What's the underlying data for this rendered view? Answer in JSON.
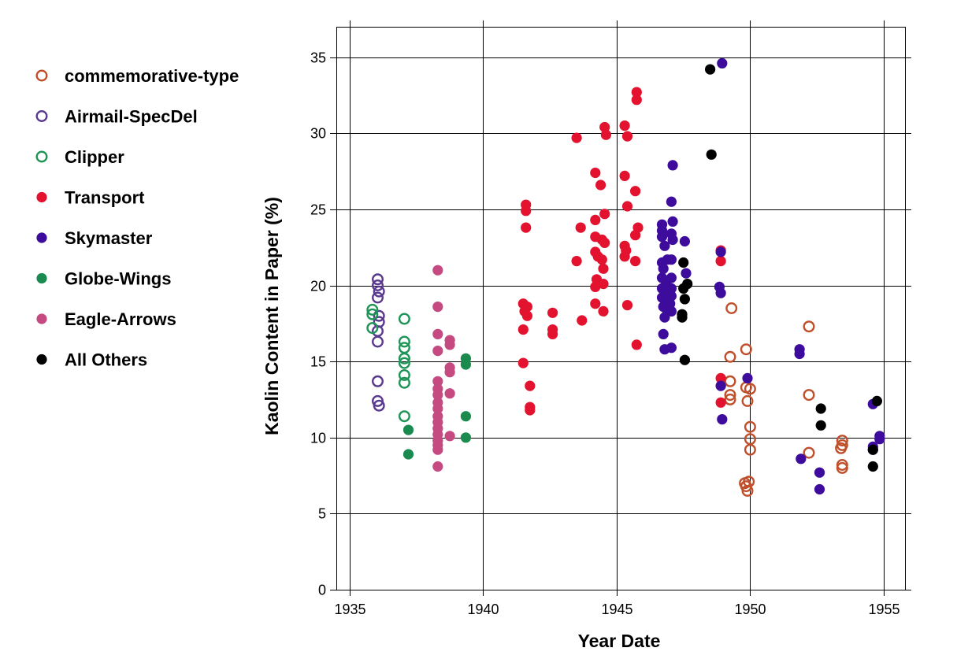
{
  "chart_data": {
    "type": "scatter",
    "title": "",
    "xlabel": "Year Date",
    "ylabel": "Kaolin Content in Paper (%)",
    "xlim": [
      1934.5,
      1955.8
    ],
    "ylim": [
      0,
      37
    ],
    "xticks": [
      1935,
      1940,
      1945,
      1950,
      1955
    ],
    "yticks": [
      0,
      5,
      10,
      15,
      20,
      25,
      30,
      35
    ],
    "grid": true,
    "legend_position": "left",
    "series": [
      {
        "name": "commemorative-type",
        "color": "#c0502c",
        "marker": "open-circle",
        "points": [
          [
            1949.3,
            18.5
          ],
          [
            1949.25,
            15.3
          ],
          [
            1949.85,
            15.8
          ],
          [
            1949.25,
            13.7
          ],
          [
            1949.25,
            12.8
          ],
          [
            1949.25,
            12.5
          ],
          [
            1949.85,
            13.3
          ],
          [
            1950.0,
            13.2
          ],
          [
            1949.9,
            12.4
          ],
          [
            1950.0,
            10.7
          ],
          [
            1950.0,
            9.9
          ],
          [
            1950.0,
            9.2
          ],
          [
            1949.8,
            7.0
          ],
          [
            1949.95,
            7.1
          ],
          [
            1949.85,
            6.8
          ],
          [
            1949.9,
            6.5
          ],
          [
            1952.2,
            17.3
          ],
          [
            1952.2,
            12.8
          ],
          [
            1952.2,
            9.0
          ],
          [
            1953.45,
            9.8
          ],
          [
            1953.45,
            9.5
          ],
          [
            1953.4,
            9.3
          ],
          [
            1953.45,
            8.2
          ],
          [
            1953.45,
            8.0
          ]
        ]
      },
      {
        "name": "Airmail-SpecDel",
        "color": "#5a3a8e",
        "marker": "open-circle",
        "points": [
          [
            1936.05,
            20.4
          ],
          [
            1936.05,
            20.0
          ],
          [
            1936.1,
            19.6
          ],
          [
            1936.05,
            19.2
          ],
          [
            1936.1,
            18.0
          ],
          [
            1936.1,
            17.6
          ],
          [
            1936.05,
            17.0
          ],
          [
            1936.05,
            16.3
          ],
          [
            1936.05,
            13.7
          ],
          [
            1936.05,
            12.4
          ],
          [
            1936.1,
            12.1
          ]
        ]
      },
      {
        "name": "Clipper",
        "color": "#1f9457",
        "marker": "open-circle",
        "points": [
          [
            1935.85,
            18.4
          ],
          [
            1935.85,
            18.1
          ],
          [
            1935.85,
            17.2
          ],
          [
            1937.05,
            17.8
          ],
          [
            1937.05,
            16.3
          ],
          [
            1937.05,
            15.9
          ],
          [
            1937.05,
            15.2
          ],
          [
            1937.05,
            14.9
          ],
          [
            1937.05,
            14.1
          ],
          [
            1937.05,
            13.6
          ],
          [
            1937.05,
            11.4
          ]
        ]
      },
      {
        "name": "Transport",
        "color": "#e3122f",
        "marker": "filled-circle",
        "points": [
          [
            1941.6,
            25.3
          ],
          [
            1941.6,
            24.9
          ],
          [
            1941.6,
            23.8
          ],
          [
            1941.5,
            18.8
          ],
          [
            1941.65,
            18.6
          ],
          [
            1941.55,
            18.3
          ],
          [
            1941.65,
            18.0
          ],
          [
            1941.5,
            17.1
          ],
          [
            1941.5,
            14.9
          ],
          [
            1941.75,
            13.4
          ],
          [
            1941.75,
            12.0
          ],
          [
            1941.75,
            11.8
          ],
          [
            1942.6,
            18.2
          ],
          [
            1942.6,
            17.1
          ],
          [
            1942.6,
            16.8
          ],
          [
            1943.5,
            29.7
          ],
          [
            1943.5,
            21.6
          ],
          [
            1943.65,
            23.8
          ],
          [
            1943.7,
            17.7
          ],
          [
            1944.2,
            27.4
          ],
          [
            1944.55,
            30.4
          ],
          [
            1944.6,
            29.9
          ],
          [
            1944.4,
            26.6
          ],
          [
            1944.55,
            24.7
          ],
          [
            1944.2,
            24.3
          ],
          [
            1944.2,
            23.2
          ],
          [
            1944.45,
            23.0
          ],
          [
            1944.55,
            22.8
          ],
          [
            1944.2,
            22.2
          ],
          [
            1944.3,
            21.9
          ],
          [
            1944.45,
            21.7
          ],
          [
            1944.5,
            21.1
          ],
          [
            1944.25,
            20.4
          ],
          [
            1944.2,
            19.9
          ],
          [
            1944.5,
            20.1
          ],
          [
            1944.2,
            18.8
          ],
          [
            1944.5,
            18.3
          ],
          [
            1945.3,
            30.5
          ],
          [
            1945.4,
            29.8
          ],
          [
            1945.3,
            27.2
          ],
          [
            1945.7,
            26.2
          ],
          [
            1945.4,
            25.2
          ],
          [
            1945.8,
            23.8
          ],
          [
            1945.7,
            23.3
          ],
          [
            1945.3,
            22.6
          ],
          [
            1945.35,
            22.3
          ],
          [
            1945.3,
            21.9
          ],
          [
            1945.7,
            21.6
          ],
          [
            1945.4,
            18.7
          ],
          [
            1945.75,
            16.1
          ],
          [
            1945.75,
            32.7
          ],
          [
            1945.75,
            32.2
          ],
          [
            1948.9,
            22.3
          ],
          [
            1948.9,
            21.6
          ],
          [
            1948.9,
            13.9
          ],
          [
            1948.9,
            12.3
          ]
        ]
      },
      {
        "name": "Skymaster",
        "color": "#3d0c9c",
        "marker": "filled-circle",
        "points": [
          [
            1946.7,
            24.0
          ],
          [
            1946.7,
            23.6
          ],
          [
            1946.7,
            23.2
          ],
          [
            1946.8,
            22.6
          ],
          [
            1946.7,
            21.5
          ],
          [
            1946.9,
            21.7
          ],
          [
            1946.75,
            21.1
          ],
          [
            1946.7,
            20.5
          ],
          [
            1946.85,
            20.2
          ],
          [
            1946.7,
            19.8
          ],
          [
            1946.8,
            19.6
          ],
          [
            1946.7,
            19.2
          ],
          [
            1946.9,
            19.1
          ],
          [
            1946.75,
            18.6
          ],
          [
            1946.9,
            18.3
          ],
          [
            1946.8,
            17.9
          ],
          [
            1946.75,
            16.8
          ],
          [
            1946.8,
            15.8
          ],
          [
            1947.05,
            15.9
          ],
          [
            1947.1,
            27.9
          ],
          [
            1947.05,
            25.5
          ],
          [
            1947.1,
            24.2
          ],
          [
            1947.05,
            23.4
          ],
          [
            1947.1,
            23.0
          ],
          [
            1947.05,
            21.7
          ],
          [
            1947.05,
            20.5
          ],
          [
            1947.05,
            19.8
          ],
          [
            1947.05,
            19.3
          ],
          [
            1947.0,
            18.8
          ],
          [
            1947.05,
            18.3
          ],
          [
            1947.55,
            22.9
          ],
          [
            1947.6,
            20.8
          ],
          [
            1948.95,
            34.6
          ],
          [
            1948.9,
            22.2
          ],
          [
            1948.85,
            19.9
          ],
          [
            1948.9,
            19.5
          ],
          [
            1948.9,
            13.4
          ],
          [
            1948.95,
            11.2
          ],
          [
            1949.9,
            13.9
          ],
          [
            1951.85,
            15.8
          ],
          [
            1951.85,
            15.5
          ],
          [
            1951.9,
            8.6
          ],
          [
            1952.6,
            7.7
          ],
          [
            1952.6,
            6.6
          ],
          [
            1954.6,
            12.2
          ],
          [
            1954.6,
            9.4
          ],
          [
            1954.6,
            9.2
          ],
          [
            1954.85,
            10.1
          ],
          [
            1954.85,
            9.9
          ]
        ]
      },
      {
        "name": "Globe-Wings",
        "color": "#1a8a4f",
        "marker": "filled-circle",
        "points": [
          [
            1937.2,
            10.5
          ],
          [
            1937.2,
            8.9
          ],
          [
            1939.35,
            15.2
          ],
          [
            1939.35,
            14.8
          ],
          [
            1939.35,
            11.4
          ],
          [
            1939.35,
            10.0
          ]
        ]
      },
      {
        "name": "Eagle-Arrows",
        "color": "#c54a81",
        "marker": "filled-circle",
        "points": [
          [
            1938.3,
            21.0
          ],
          [
            1938.3,
            18.6
          ],
          [
            1938.3,
            16.8
          ],
          [
            1938.3,
            15.7
          ],
          [
            1938.3,
            13.7
          ],
          [
            1938.3,
            13.2
          ],
          [
            1938.3,
            12.8
          ],
          [
            1938.3,
            12.3
          ],
          [
            1938.3,
            11.9
          ],
          [
            1938.3,
            11.4
          ],
          [
            1938.3,
            11.0
          ],
          [
            1938.3,
            10.6
          ],
          [
            1938.3,
            10.2
          ],
          [
            1938.3,
            9.8
          ],
          [
            1938.3,
            9.5
          ],
          [
            1938.3,
            9.2
          ],
          [
            1938.3,
            8.1
          ],
          [
            1938.75,
            16.4
          ],
          [
            1938.75,
            16.1
          ],
          [
            1938.75,
            14.6
          ],
          [
            1938.75,
            14.3
          ],
          [
            1938.75,
            12.9
          ],
          [
            1938.75,
            10.1
          ]
        ]
      },
      {
        "name": "All Others",
        "color": "#000000",
        "marker": "filled-circle",
        "points": [
          [
            1948.5,
            34.2
          ],
          [
            1948.55,
            28.6
          ],
          [
            1947.5,
            21.5
          ],
          [
            1947.65,
            20.1
          ],
          [
            1947.5,
            19.8
          ],
          [
            1947.55,
            19.1
          ],
          [
            1947.45,
            18.1
          ],
          [
            1947.45,
            17.9
          ],
          [
            1947.55,
            15.1
          ],
          [
            1952.65,
            11.9
          ],
          [
            1952.65,
            10.8
          ],
          [
            1954.75,
            12.4
          ],
          [
            1954.6,
            9.2
          ],
          [
            1954.6,
            8.1
          ]
        ]
      }
    ]
  }
}
